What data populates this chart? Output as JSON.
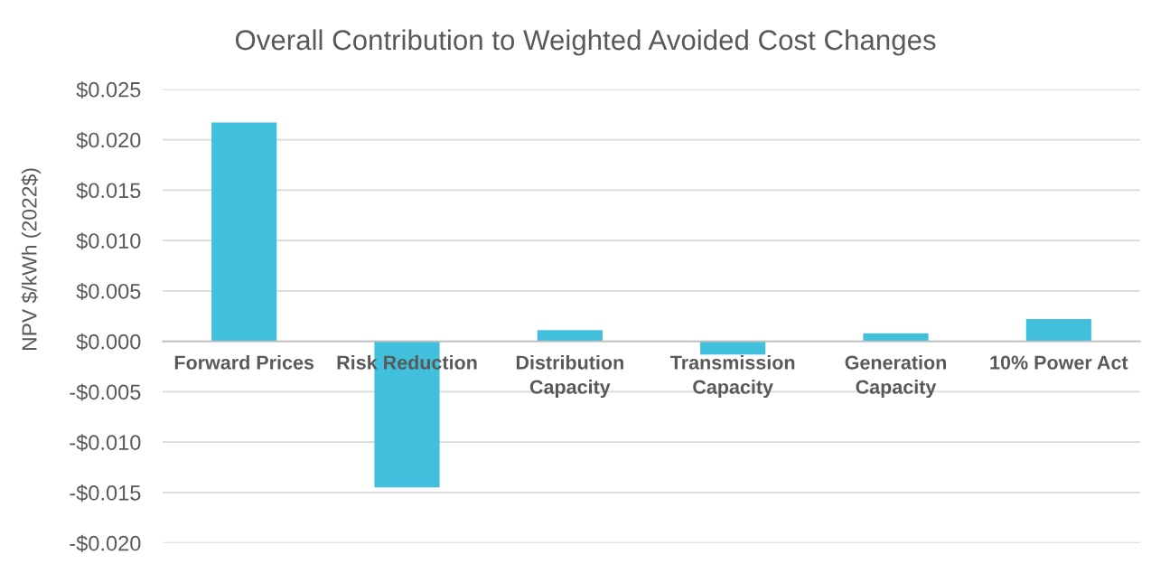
{
  "chart_data": {
    "type": "bar",
    "title": "Overall Contribution to Weighted Avoided Cost Changes",
    "ylabel": "NPV $/kWh (2022$)",
    "categories": [
      "Forward Prices",
      "Risk Reduction",
      "Distribution\nCapacity",
      "Transmission\nCapacity",
      "Generation\nCapacity",
      "10% Power Act"
    ],
    "values": [
      0.0217,
      -0.0145,
      0.0011,
      -0.0013,
      0.0008,
      0.0022
    ],
    "color": "#41c0dd",
    "ylim": [
      -0.02,
      0.025
    ],
    "yticks": [
      {
        "value": -0.02,
        "label": "-$0.020"
      },
      {
        "value": -0.015,
        "label": "-$0.015"
      },
      {
        "value": -0.01,
        "label": "-$0.010"
      },
      {
        "value": -0.005,
        "label": "-$0.005"
      },
      {
        "value": 0,
        "label": "$0.000"
      },
      {
        "value": 0.005,
        "label": "$0.005"
      },
      {
        "value": 0.01,
        "label": "$0.010"
      },
      {
        "value": 0.015,
        "label": "$0.015"
      },
      {
        "value": 0.02,
        "label": "$0.020"
      },
      {
        "value": 0.025,
        "label": "$0.025"
      }
    ],
    "grid": "y"
  }
}
